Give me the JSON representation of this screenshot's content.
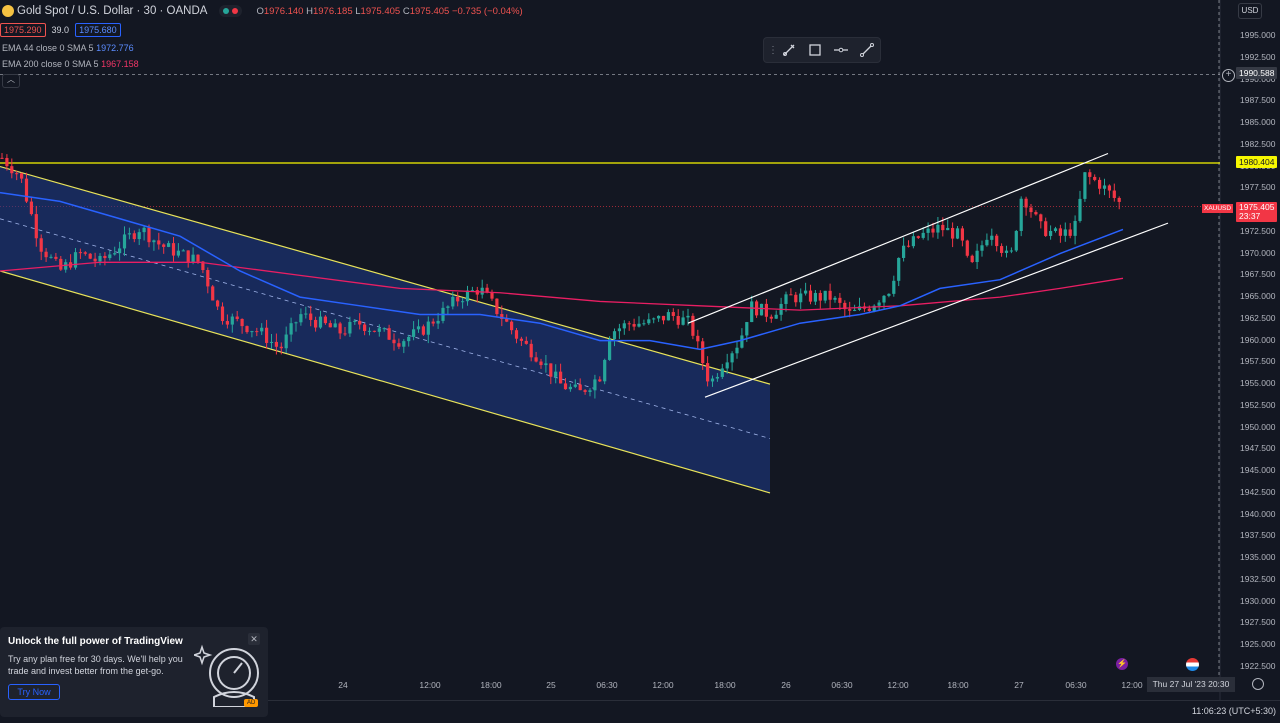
{
  "header": {
    "symbol_title": "Gold Spot / U.S. Dollar · 30 · OANDA",
    "ohlc": {
      "o_label": "O",
      "o": "1976.140",
      "h_label": "H",
      "h": "1976.185",
      "l_label": "L",
      "l": "1975.405",
      "c_label": "C",
      "c": "1975.405",
      "change": "−0.735 (−0.04%)"
    },
    "sell_price": "1975.290",
    "spread": "39.0",
    "buy_price": "1975.680",
    "ema1": {
      "label": "EMA 44 close 0 SMA 5",
      "value": "1972.776",
      "color": "#2962ff"
    },
    "ema2": {
      "label": "EMA 200 close 0 SMA 5",
      "value": "1967.158",
      "color": "#f23667"
    }
  },
  "toolbar": {
    "icons": [
      "pencil-icon",
      "rectangle-icon",
      "horizontal-line-icon",
      "trend-line-icon"
    ]
  },
  "price_axis": {
    "currency": "USD",
    "ticks": [
      "1995.000",
      "1992.500",
      "1990.000",
      "1987.500",
      "1985.000",
      "1982.500",
      "1980.000",
      "1977.500",
      "1975.000",
      "1972.500",
      "1970.000",
      "1967.500",
      "1965.000",
      "1962.500",
      "1960.000",
      "1957.500",
      "1955.000",
      "1952.500",
      "1950.000",
      "1947.500",
      "1945.000",
      "1942.500",
      "1940.000",
      "1937.500",
      "1935.000",
      "1932.500",
      "1930.000",
      "1927.500",
      "1925.000",
      "1922.500"
    ],
    "crosshair_price": "1990.588",
    "resistance_price": "1980.404",
    "last_price": "1975.405",
    "countdown": "23:37",
    "symbol_tag": "XAUUSD"
  },
  "time_axis": {
    "ticks": [
      {
        "label": "24",
        "x": 343
      },
      {
        "label": "12:00",
        "x": 430
      },
      {
        "label": "18:00",
        "x": 491
      },
      {
        "label": "25",
        "x": 551
      },
      {
        "label": "06:30",
        "x": 607
      },
      {
        "label": "12:00",
        "x": 663
      },
      {
        "label": "18:00",
        "x": 725
      },
      {
        "label": "26",
        "x": 786
      },
      {
        "label": "06:30",
        "x": 842
      },
      {
        "label": "12:00",
        "x": 898
      },
      {
        "label": "18:00",
        "x": 958
      },
      {
        "label": "27",
        "x": 1019
      },
      {
        "label": "06:30",
        "x": 1076
      },
      {
        "label": "12:00",
        "x": 1132
      }
    ],
    "cursor_time": "Thu 27 Jul '23   20:30"
  },
  "status_bar": {
    "clock": "11:06:23 (UTC+5:30)"
  },
  "promo": {
    "title": "Unlock the full power of TradingView",
    "body": "Try any plan free for 30 days. We'll help you trade and invest better from the get-go.",
    "button": "Try Now",
    "badge": "AD"
  },
  "colors": {
    "up": "#26a69a",
    "down": "#f23645",
    "ema44": "#2962ff",
    "ema200": "#e91e63",
    "resistance": "#f7f700",
    "channel": "#ffffff",
    "downtrend": "#e8e35a",
    "fill": "#1e3a8a"
  },
  "chart_data": {
    "type": "candlestick",
    "title": "Gold Spot / U.S. Dollar · 30 · OANDA",
    "ylim": [
      1921,
      1997
    ],
    "close_path": [
      [
        2,
        1981
      ],
      [
        20,
        1979
      ],
      [
        40,
        1971
      ],
      [
        60,
        1968
      ],
      [
        80,
        1970
      ],
      [
        100,
        1969
      ],
      [
        120,
        1971
      ],
      [
        140,
        1973
      ],
      [
        160,
        1971
      ],
      [
        180,
        1970
      ],
      [
        200,
        1969
      ],
      [
        220,
        1963
      ],
      [
        240,
        1962
      ],
      [
        260,
        1961
      ],
      [
        280,
        1959
      ],
      [
        300,
        1963
      ],
      [
        320,
        1962
      ],
      [
        340,
        1961
      ],
      [
        360,
        1962
      ],
      [
        380,
        1961
      ],
      [
        400,
        1960
      ],
      [
        420,
        1961
      ],
      [
        440,
        1963
      ],
      [
        460,
        1965
      ],
      [
        480,
        1966
      ],
      [
        500,
        1963
      ],
      [
        520,
        1960
      ],
      [
        540,
        1958
      ],
      [
        560,
        1955
      ],
      [
        580,
        1954
      ],
      [
        600,
        1956
      ],
      [
        610,
        1961
      ],
      [
        630,
        1962
      ],
      [
        650,
        1962
      ],
      [
        670,
        1963
      ],
      [
        690,
        1962
      ],
      [
        710,
        1955
      ],
      [
        725,
        1958
      ],
      [
        740,
        1960
      ],
      [
        750,
        1964
      ],
      [
        770,
        1963
      ],
      [
        790,
        1965
      ],
      [
        810,
        1965
      ],
      [
        830,
        1965
      ],
      [
        850,
        1963
      ],
      [
        870,
        1964
      ],
      [
        890,
        1966
      ],
      [
        900,
        1970
      ],
      [
        920,
        1972
      ],
      [
        940,
        1973
      ],
      [
        960,
        1972
      ],
      [
        970,
        1968
      ],
      [
        990,
        1973
      ],
      [
        1010,
        1969
      ],
      [
        1022,
        1977
      ],
      [
        1040,
        1973
      ],
      [
        1060,
        1972
      ],
      [
        1075,
        1973
      ],
      [
        1085,
        1979
      ],
      [
        1100,
        1978
      ],
      [
        1123,
        1975.4
      ]
    ],
    "ema44": [
      [
        0,
        1977
      ],
      [
        60,
        1976
      ],
      [
        120,
        1974
      ],
      [
        180,
        1972
      ],
      [
        240,
        1968
      ],
      [
        300,
        1965
      ],
      [
        360,
        1964
      ],
      [
        420,
        1963
      ],
      [
        480,
        1963
      ],
      [
        540,
        1962
      ],
      [
        600,
        1960
      ],
      [
        650,
        1960
      ],
      [
        700,
        1959
      ],
      [
        740,
        1960
      ],
      [
        800,
        1962
      ],
      [
        860,
        1963
      ],
      [
        900,
        1964
      ],
      [
        940,
        1966
      ],
      [
        1000,
        1967
      ],
      [
        1060,
        1970
      ],
      [
        1123,
        1972.776
      ]
    ],
    "ema200": [
      [
        0,
        1968
      ],
      [
        100,
        1969
      ],
      [
        200,
        1969
      ],
      [
        300,
        1967.5
      ],
      [
        400,
        1966
      ],
      [
        500,
        1965.5
      ],
      [
        600,
        1964.5
      ],
      [
        700,
        1964
      ],
      [
        800,
        1963.5
      ],
      [
        900,
        1964
      ],
      [
        1000,
        1965
      ],
      [
        1060,
        1966
      ],
      [
        1123,
        1967.158
      ]
    ],
    "resistance": 1980.404,
    "annotations": [
      {
        "type": "descending-channel",
        "from": [
          0,
          1980
        ],
        "to": [
          770,
          1955
        ],
        "lower_from": [
          0,
          1968
        ],
        "lower_to": [
          770,
          1942.5
        ]
      },
      {
        "type": "ascending-channel",
        "from": [
          688,
          1962
        ],
        "to": [
          1108,
          1981.5
        ],
        "lower_from": [
          705,
          1953.5
        ],
        "lower_to": [
          1168,
          1973.5
        ]
      }
    ],
    "x_labels": [
      "24",
      "12:00",
      "18:00",
      "25",
      "06:30",
      "12:00",
      "18:00",
      "26",
      "06:30",
      "12:00",
      "18:00",
      "27",
      "06:30",
      "12:00"
    ]
  }
}
